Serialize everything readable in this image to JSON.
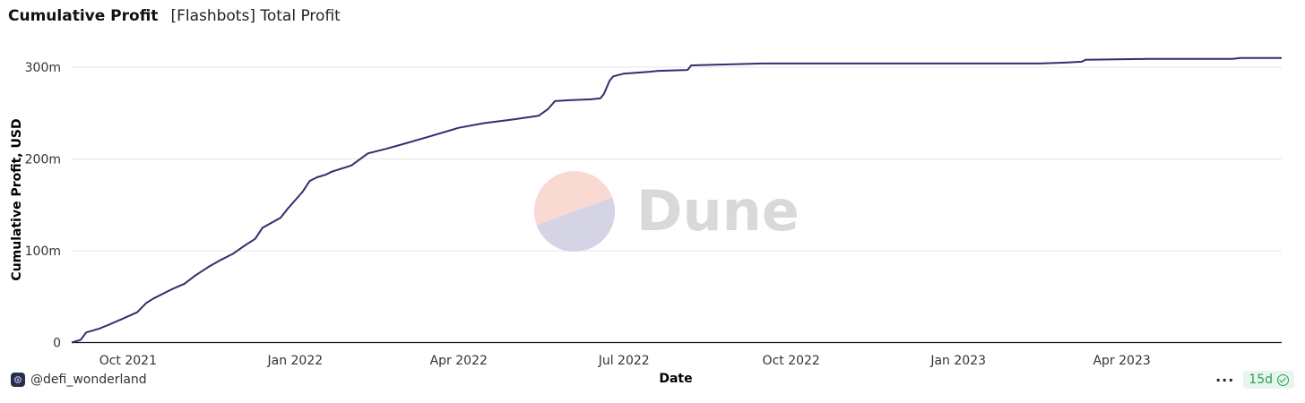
{
  "header": {
    "title": "Cumulative Profit",
    "subtitle": "[Flashbots] Total Profit"
  },
  "footer": {
    "author": "@defi_wonderland",
    "more_label": "···",
    "refresh_badge": "15d"
  },
  "watermark": {
    "text": "Dune",
    "colors": {
      "top": "#f8dad3",
      "bottom": "#d4d4e4",
      "text": "#d9d9d9"
    }
  },
  "colors": {
    "line": "#2f2f6e",
    "grid": "#e5e5e5",
    "axis": "#111111",
    "tick_text": "#333333"
  },
  "chart_data": {
    "type": "line",
    "xlabel": "Date",
    "ylabel": "Cumulative Profit, USD",
    "ylim": [
      0,
      300
    ],
    "y_unit": "m",
    "yticks": [
      0,
      100,
      200,
      300
    ],
    "ytick_labels": [
      "0",
      "100m",
      "200m",
      "300m"
    ],
    "xlim": [
      "2021-08-31",
      "2023-06-28"
    ],
    "xticks": [
      "2021-10-01",
      "2022-01-01",
      "2022-04-01",
      "2022-07-01",
      "2022-10-01",
      "2023-01-01",
      "2023-04-01"
    ],
    "xtick_labels": [
      "Oct 2021",
      "Jan 2022",
      "Apr 2022",
      "Jul 2022",
      "Oct 2022",
      "Jan 2023",
      "Apr 2023"
    ],
    "grid": true,
    "series": [
      {
        "x": [
          "2021-08-31",
          "2021-09-05",
          "2021-09-08",
          "2021-09-15",
          "2021-09-20",
          "2021-09-28",
          "2021-10-06",
          "2021-10-11",
          "2021-10-15",
          "2021-10-25",
          "2021-11-01",
          "2021-11-07",
          "2021-11-14",
          "2021-11-21",
          "2021-11-28",
          "2021-12-03",
          "2021-12-10",
          "2021-12-14",
          "2021-12-24",
          "2021-12-28",
          "2022-01-01",
          "2022-01-05",
          "2022-01-09",
          "2022-01-13",
          "2022-01-18",
          "2022-01-21",
          "2022-02-01",
          "2022-02-10",
          "2022-02-20",
          "2022-03-01",
          "2022-03-15",
          "2022-04-01",
          "2022-04-15",
          "2022-05-01",
          "2022-05-15",
          "2022-05-20",
          "2022-05-24",
          "2022-06-01",
          "2022-06-13",
          "2022-06-18",
          "2022-06-20",
          "2022-06-23",
          "2022-06-25",
          "2022-07-01",
          "2022-07-15",
          "2022-07-20",
          "2022-08-05",
          "2022-08-07",
          "2022-09-15",
          "2022-12-31",
          "2023-02-15",
          "2023-03-01",
          "2023-03-10",
          "2023-03-12",
          "2023-04-15",
          "2023-06-01",
          "2023-06-05",
          "2023-06-28"
        ],
        "y": [
          0,
          3,
          11,
          15,
          19,
          26,
          33,
          43,
          48,
          58,
          64,
          73,
          82,
          90,
          97,
          104,
          113,
          125,
          136,
          146,
          155,
          164,
          176,
          180,
          183,
          186,
          193,
          206,
          211,
          216,
          224,
          234,
          239,
          243,
          247,
          254,
          263,
          264,
          265,
          266,
          271,
          285,
          290,
          293,
          295,
          296,
          297,
          302,
          304,
          304,
          304,
          305,
          306,
          308,
          309,
          309,
          310,
          310
        ]
      }
    ]
  }
}
